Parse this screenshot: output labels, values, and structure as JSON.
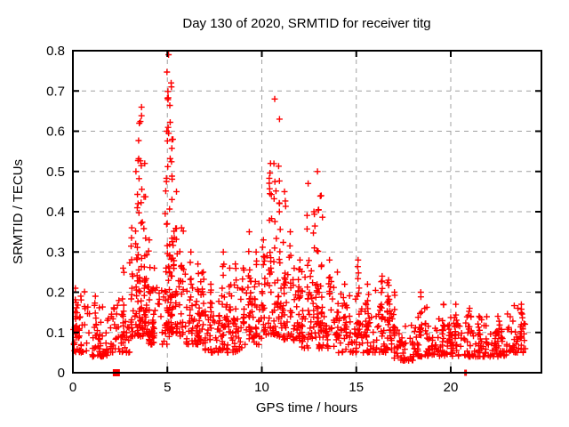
{
  "window": {
    "background": "#ffffff",
    "text_color": "#000000"
  },
  "chart_data": {
    "type": "scatter",
    "title": "Day 130 of 2020, SRMTID for receiver titg",
    "xlabel": "GPS time / hours",
    "ylabel": "SRMTID / TECUs",
    "xlim": [
      0,
      24.8
    ],
    "ylim": [
      0,
      0.8
    ],
    "xticks": [
      0,
      5,
      10,
      15,
      20
    ],
    "yticks": [
      0,
      0.1,
      0.2,
      0.3,
      0.4,
      0.5,
      0.6,
      0.7,
      0.8
    ],
    "grid": true,
    "grid_style": "dashed",
    "grid_color": "#a0a0a0",
    "border_color": "#000000",
    "legend": "none",
    "marker": {
      "shape": "plus",
      "color": "#ff0000",
      "size": 7,
      "stroke": 1.4
    },
    "data_time_range_hours": [
      0,
      23.95
    ],
    "seed": 20200509,
    "points_per_hour_background": 44,
    "background_band_by_hour": [
      [
        0.05,
        0.18
      ],
      [
        0.04,
        0.15
      ],
      [
        0.05,
        0.17
      ],
      [
        0.09,
        0.3
      ],
      [
        0.07,
        0.24
      ],
      [
        0.1,
        0.32
      ],
      [
        0.07,
        0.22
      ],
      [
        0.05,
        0.18
      ],
      [
        0.05,
        0.2
      ],
      [
        0.07,
        0.26
      ],
      [
        0.09,
        0.3
      ],
      [
        0.08,
        0.26
      ],
      [
        0.06,
        0.24
      ],
      [
        0.06,
        0.22
      ],
      [
        0.05,
        0.18
      ],
      [
        0.05,
        0.19
      ],
      [
        0.05,
        0.19
      ],
      [
        0.03,
        0.12
      ],
      [
        0.04,
        0.15
      ],
      [
        0.04,
        0.13
      ],
      [
        0.04,
        0.13
      ],
      [
        0.04,
        0.13
      ],
      [
        0.04,
        0.12
      ],
      [
        0.05,
        0.15
      ]
    ],
    "streaks": [
      [
        0.15,
        0.21,
        10
      ],
      [
        1.2,
        0.19,
        8
      ],
      [
        2.65,
        0.26,
        10
      ],
      [
        3.1,
        0.36,
        12
      ],
      [
        3.35,
        0.5,
        14
      ],
      [
        3.5,
        0.62,
        16
      ],
      [
        3.62,
        0.66,
        14
      ],
      [
        3.8,
        0.52,
        12
      ],
      [
        4.05,
        0.33,
        10
      ],
      [
        4.3,
        0.26,
        8
      ],
      [
        4.95,
        0.6,
        16
      ],
      [
        5.05,
        0.79,
        22
      ],
      [
        5.18,
        0.72,
        16
      ],
      [
        5.3,
        0.58,
        12
      ],
      [
        5.5,
        0.45,
        10
      ],
      [
        5.75,
        0.36,
        8
      ],
      [
        6.25,
        0.3,
        10
      ],
      [
        6.6,
        0.27,
        10
      ],
      [
        6.9,
        0.25,
        8
      ],
      [
        7.3,
        0.22,
        8
      ],
      [
        7.95,
        0.3,
        10
      ],
      [
        8.3,
        0.26,
        8
      ],
      [
        8.6,
        0.27,
        8
      ],
      [
        9.0,
        0.26,
        8
      ],
      [
        9.35,
        0.35,
        12
      ],
      [
        9.7,
        0.3,
        10
      ],
      [
        10.1,
        0.33,
        10
      ],
      [
        10.45,
        0.52,
        16
      ],
      [
        10.7,
        0.68,
        10
      ],
      [
        10.95,
        0.63,
        14
      ],
      [
        11.2,
        0.45,
        12
      ],
      [
        11.5,
        0.35,
        8
      ],
      [
        12.0,
        0.28,
        8
      ],
      [
        12.45,
        0.47,
        10
      ],
      [
        12.75,
        0.4,
        8
      ],
      [
        12.95,
        0.5,
        14
      ],
      [
        13.15,
        0.44,
        10
      ],
      [
        13.6,
        0.28,
        8
      ],
      [
        14.0,
        0.25,
        8
      ],
      [
        14.4,
        0.22,
        8
      ],
      [
        15.1,
        0.28,
        10
      ],
      [
        15.6,
        0.22,
        8
      ],
      [
        16.35,
        0.24,
        12
      ],
      [
        16.7,
        0.23,
        10
      ],
      [
        17.0,
        0.2,
        6
      ],
      [
        18.4,
        0.2,
        8
      ],
      [
        19.6,
        0.17,
        6
      ],
      [
        20.25,
        0.17,
        6
      ],
      [
        21.0,
        0.16,
        6
      ],
      [
        21.5,
        0.14,
        5
      ],
      [
        22.5,
        0.14,
        5
      ],
      [
        23.75,
        0.17,
        8
      ]
    ],
    "special_markers": {
      "square_outlier": {
        "t": 2.3,
        "y": 0,
        "size": 8
      },
      "zero_plusses": [
        [
          20.75,
          0
        ],
        [
          20.82,
          0
        ]
      ]
    }
  }
}
